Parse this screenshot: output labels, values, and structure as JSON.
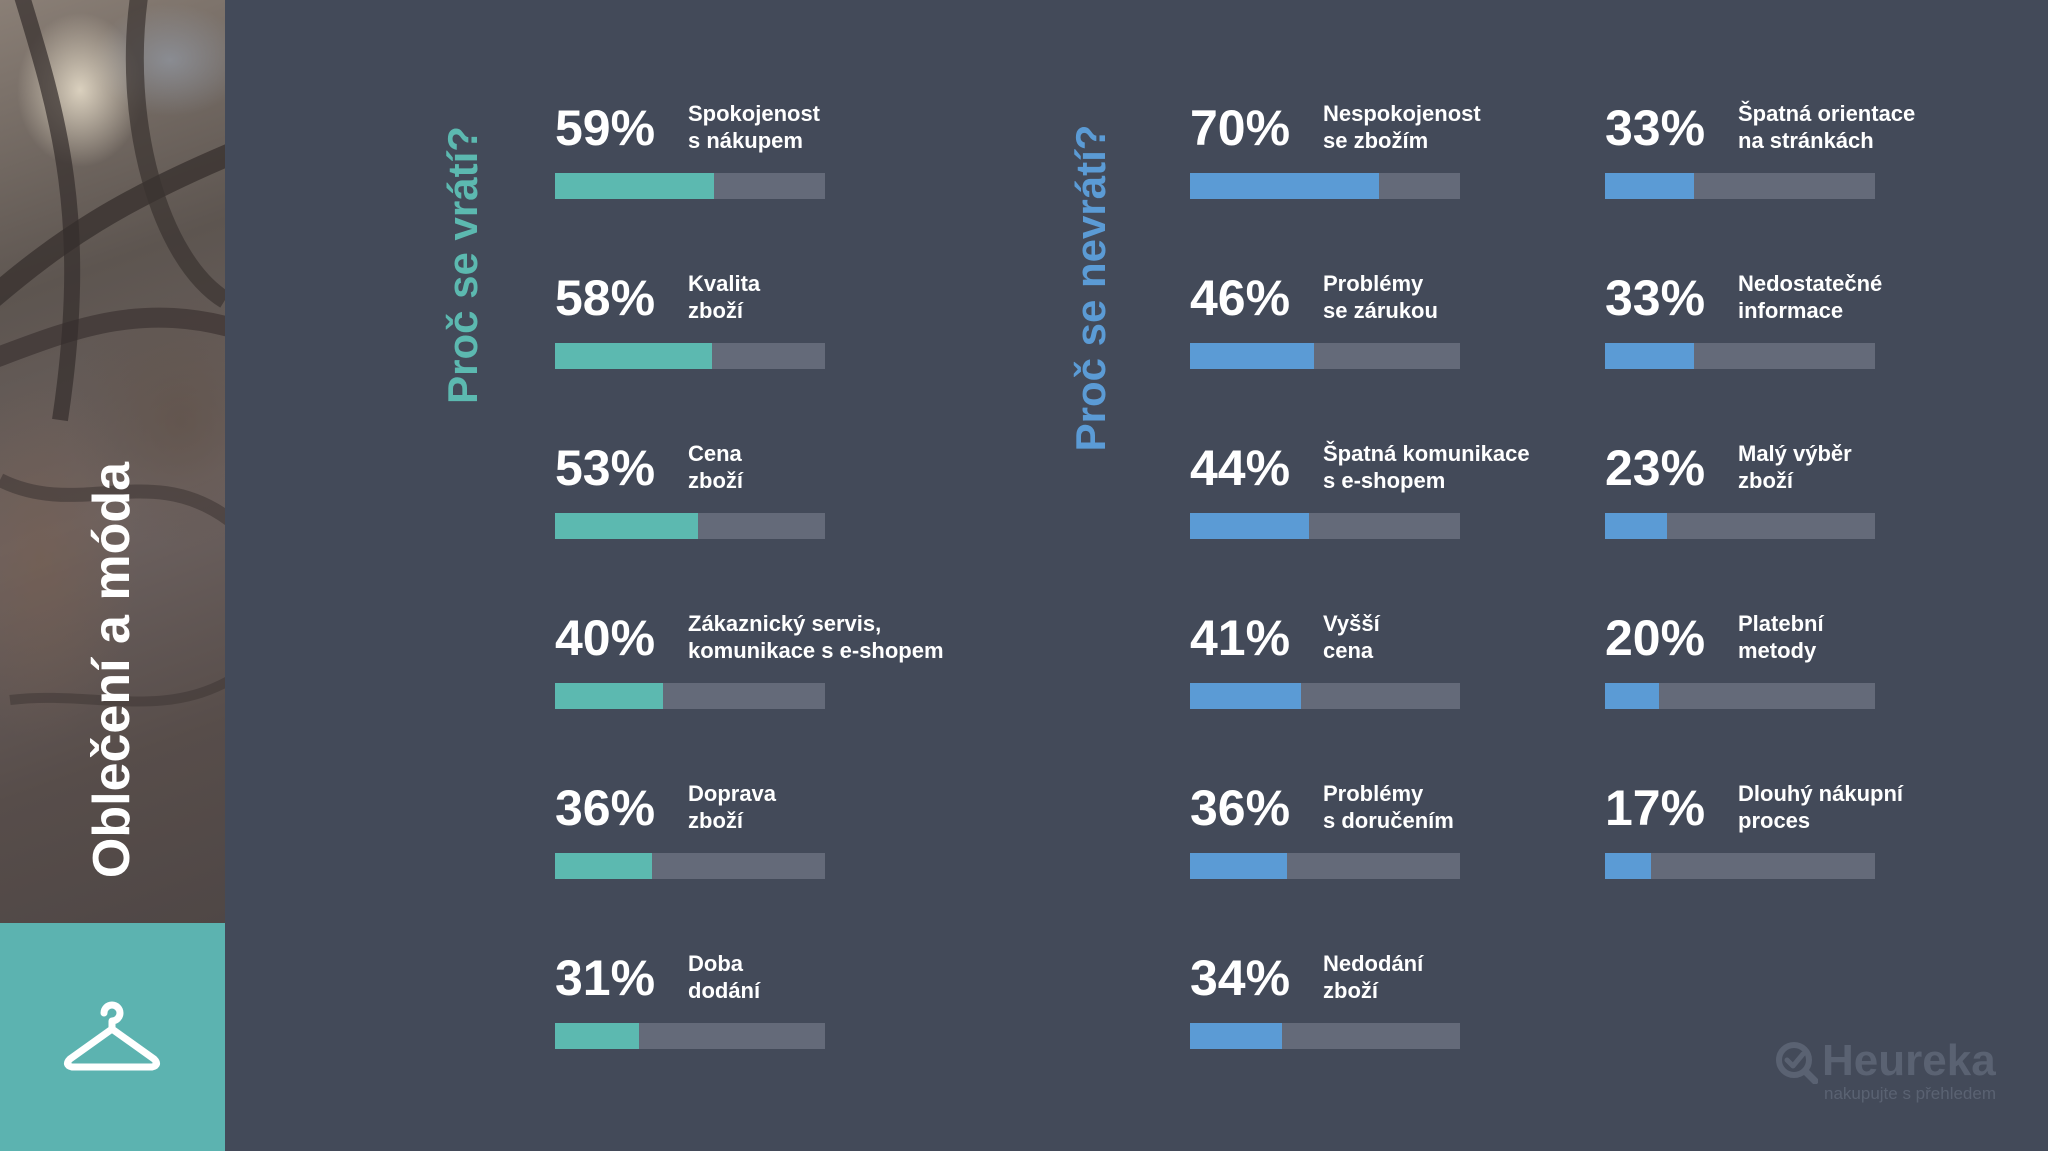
{
  "sidebar": {
    "title": "Oblečení a móda",
    "icon": "hanger-icon"
  },
  "colors": {
    "background": "#434a59",
    "return_accent": "#5cb9b0",
    "not_return_accent": "#5b9bd5",
    "track": "#646a79",
    "icon_box": "#5cb3b0"
  },
  "chart_data": [
    {
      "type": "bar",
      "orientation": "horizontal",
      "title": "Proč se vrátí?",
      "unit": "%",
      "ylim": [
        0,
        100
      ],
      "categories": [
        "Spokojenost\ns nákupem",
        "Kvalita\nzboží",
        "Cena\nzboží",
        "Zákaznický servis,\nkomunikace s e-shopem",
        "Doprava\nzboží",
        "Doba\ndodání"
      ],
      "values": [
        59,
        58,
        53,
        40,
        36,
        31
      ]
    },
    {
      "type": "bar",
      "orientation": "horizontal",
      "title": "Proč se nevrátí?",
      "unit": "%",
      "ylim": [
        0,
        100
      ],
      "categories": [
        "Nespokojenost\nse zbožím",
        "Problémy\nse zárukou",
        "Špatná komunikace\ns e-shopem",
        "Vyšší\ncena",
        "Problémy\ns doručením",
        "Nedodání\nzboží",
        "Špatná orientace\nna stránkách",
        "Nedostatečné\ninformace",
        "Malý výběr\nzboží",
        "Platební\nmetody",
        "Dlouhý nákupní\nproces"
      ],
      "values": [
        70,
        46,
        44,
        41,
        36,
        34,
        33,
        33,
        23,
        20,
        17
      ]
    }
  ],
  "logo": {
    "brand": "Heureka",
    "tagline": "nakupujte s přehledem"
  }
}
